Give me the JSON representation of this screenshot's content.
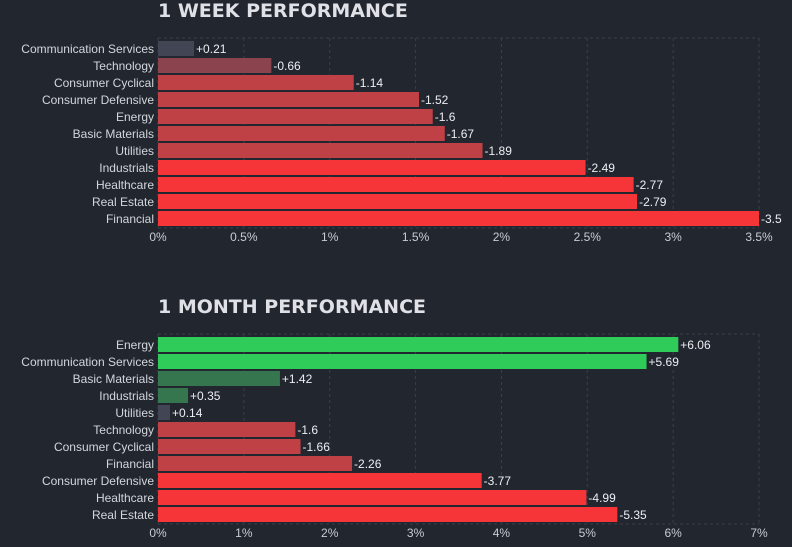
{
  "chart_data": [
    {
      "type": "bar",
      "orientation": "horizontal",
      "title": "1 WEEK PERFORMANCE",
      "unit": "%",
      "xlim": [
        0,
        3.5
      ],
      "ticks": [
        0,
        0.5,
        1,
        1.5,
        2,
        2.5,
        3,
        3.5
      ],
      "tick_labels": [
        "0%",
        "0.5%",
        "1%",
        "1.5%",
        "2%",
        "2.5%",
        "3%",
        "3.5%"
      ],
      "categories": [
        "Communication Services",
        "Technology",
        "Consumer Cyclical",
        "Consumer Defensive",
        "Energy",
        "Basic Materials",
        "Utilities",
        "Industrials",
        "Healthcare",
        "Real Estate",
        "Financial"
      ],
      "values": [
        0.21,
        -0.66,
        -1.14,
        -1.52,
        -1.6,
        -1.67,
        -1.89,
        -2.49,
        -2.77,
        -2.79,
        -3.5
      ],
      "value_labels": [
        "+0.21",
        "-0.66",
        "-1.14",
        "-1.52",
        "-1.6",
        "-1.67",
        "-1.89",
        "-2.49",
        "-2.77",
        "-2.79",
        "-3.5"
      ]
    },
    {
      "type": "bar",
      "orientation": "horizontal",
      "title": "1 MONTH PERFORMANCE",
      "unit": "%",
      "xlim": [
        0,
        7
      ],
      "ticks": [
        0,
        1,
        2,
        3,
        4,
        5,
        6,
        7
      ],
      "tick_labels": [
        "0%",
        "1%",
        "2%",
        "3%",
        "4%",
        "5%",
        "6%",
        "7%"
      ],
      "categories": [
        "Energy",
        "Communication Services",
        "Basic Materials",
        "Industrials",
        "Utilities",
        "Technology",
        "Consumer Cyclical",
        "Financial",
        "Consumer Defensive",
        "Healthcare",
        "Real Estate"
      ],
      "values": [
        6.06,
        5.69,
        1.42,
        0.35,
        0.14,
        -1.6,
        -1.66,
        -2.26,
        -3.77,
        -4.99,
        -5.35
      ],
      "value_labels": [
        "+6.06",
        "+5.69",
        "+1.42",
        "+0.35",
        "+0.14",
        "-1.6",
        "-1.66",
        "-2.26",
        "-3.77",
        "-4.99",
        "-5.35"
      ]
    }
  ],
  "colors": {
    "background": "#22262f",
    "strong_negative": "#f63538",
    "mid_negative": "#bf4045",
    "weak_negative": "#8b444e",
    "flat": "#414554",
    "weak_positive": "#35764e",
    "strong_positive": "#30cc5a"
  }
}
